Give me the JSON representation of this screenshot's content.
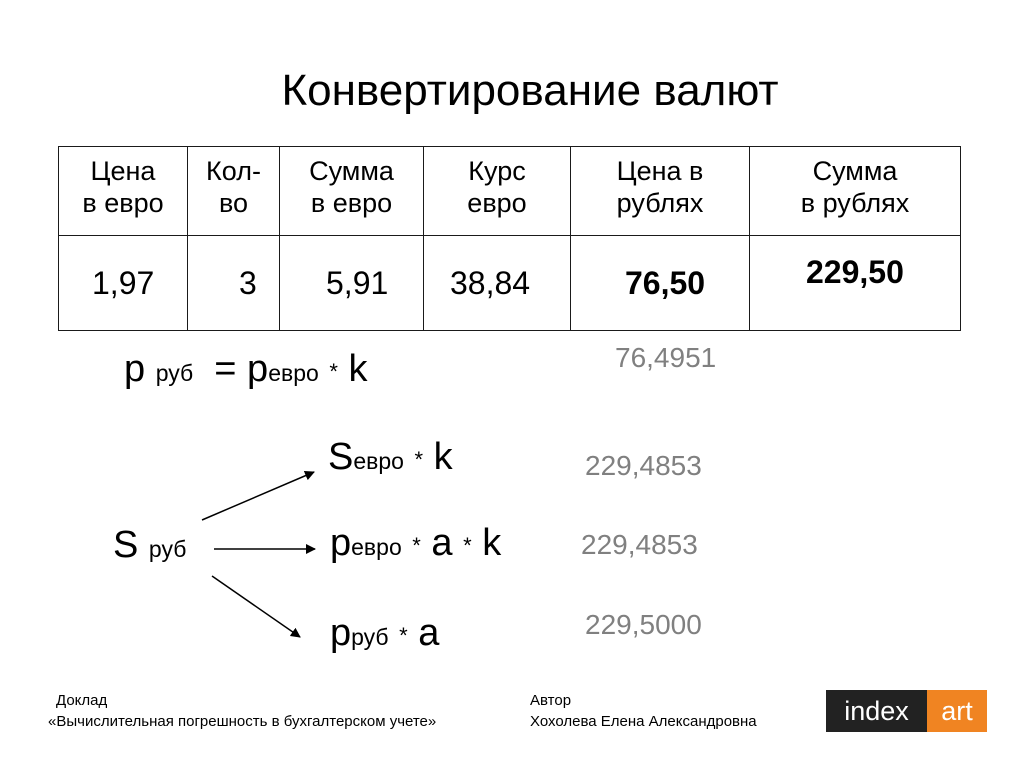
{
  "title": "Конвертирование валют",
  "table": {
    "headers": [
      [
        "Цена",
        "в евро"
      ],
      [
        "Кол-",
        "во"
      ],
      [
        "Сумма",
        "в евро"
      ],
      [
        "Курс",
        "евро"
      ],
      [
        "Цена в",
        "рублях"
      ],
      [
        "Сумма",
        "в рублях"
      ]
    ],
    "row": [
      "1,97",
      "3",
      "5,91",
      "38,84",
      "76,50",
      "229,50"
    ]
  },
  "formula1": {
    "p": "p",
    "rub": "руб",
    "eq_p": "= p",
    "evro": "евро",
    "star": "*",
    "k": "k"
  },
  "formulas": {
    "s_evro": {
      "s": "S",
      "evro": "евро",
      "star": "*",
      "k": "k"
    },
    "p_evro_a_k": {
      "p": "p",
      "evro": "евро",
      "star1": "*",
      "a": "a",
      "star2": "*",
      "k": "k"
    },
    "p_rub_a": {
      "p": "p",
      "rub": "руб",
      "star": "*",
      "a": "a"
    }
  },
  "s_rub": {
    "s": "S",
    "rub": "руб"
  },
  "computed": [
    "76,4951",
    "229,4853",
    "229,4853",
    "229,5000"
  ],
  "footer": {
    "report_label": "Доклад",
    "report_title": "«Вычислительная погрешность в бухгалтерском учете»",
    "author_label": "Автор",
    "author_name": "Хохолева Елена Александровна"
  },
  "logo": {
    "part1": "index",
    "part2": "art",
    "colors": {
      "dark": "#222222",
      "accent": "#f08422"
    }
  }
}
